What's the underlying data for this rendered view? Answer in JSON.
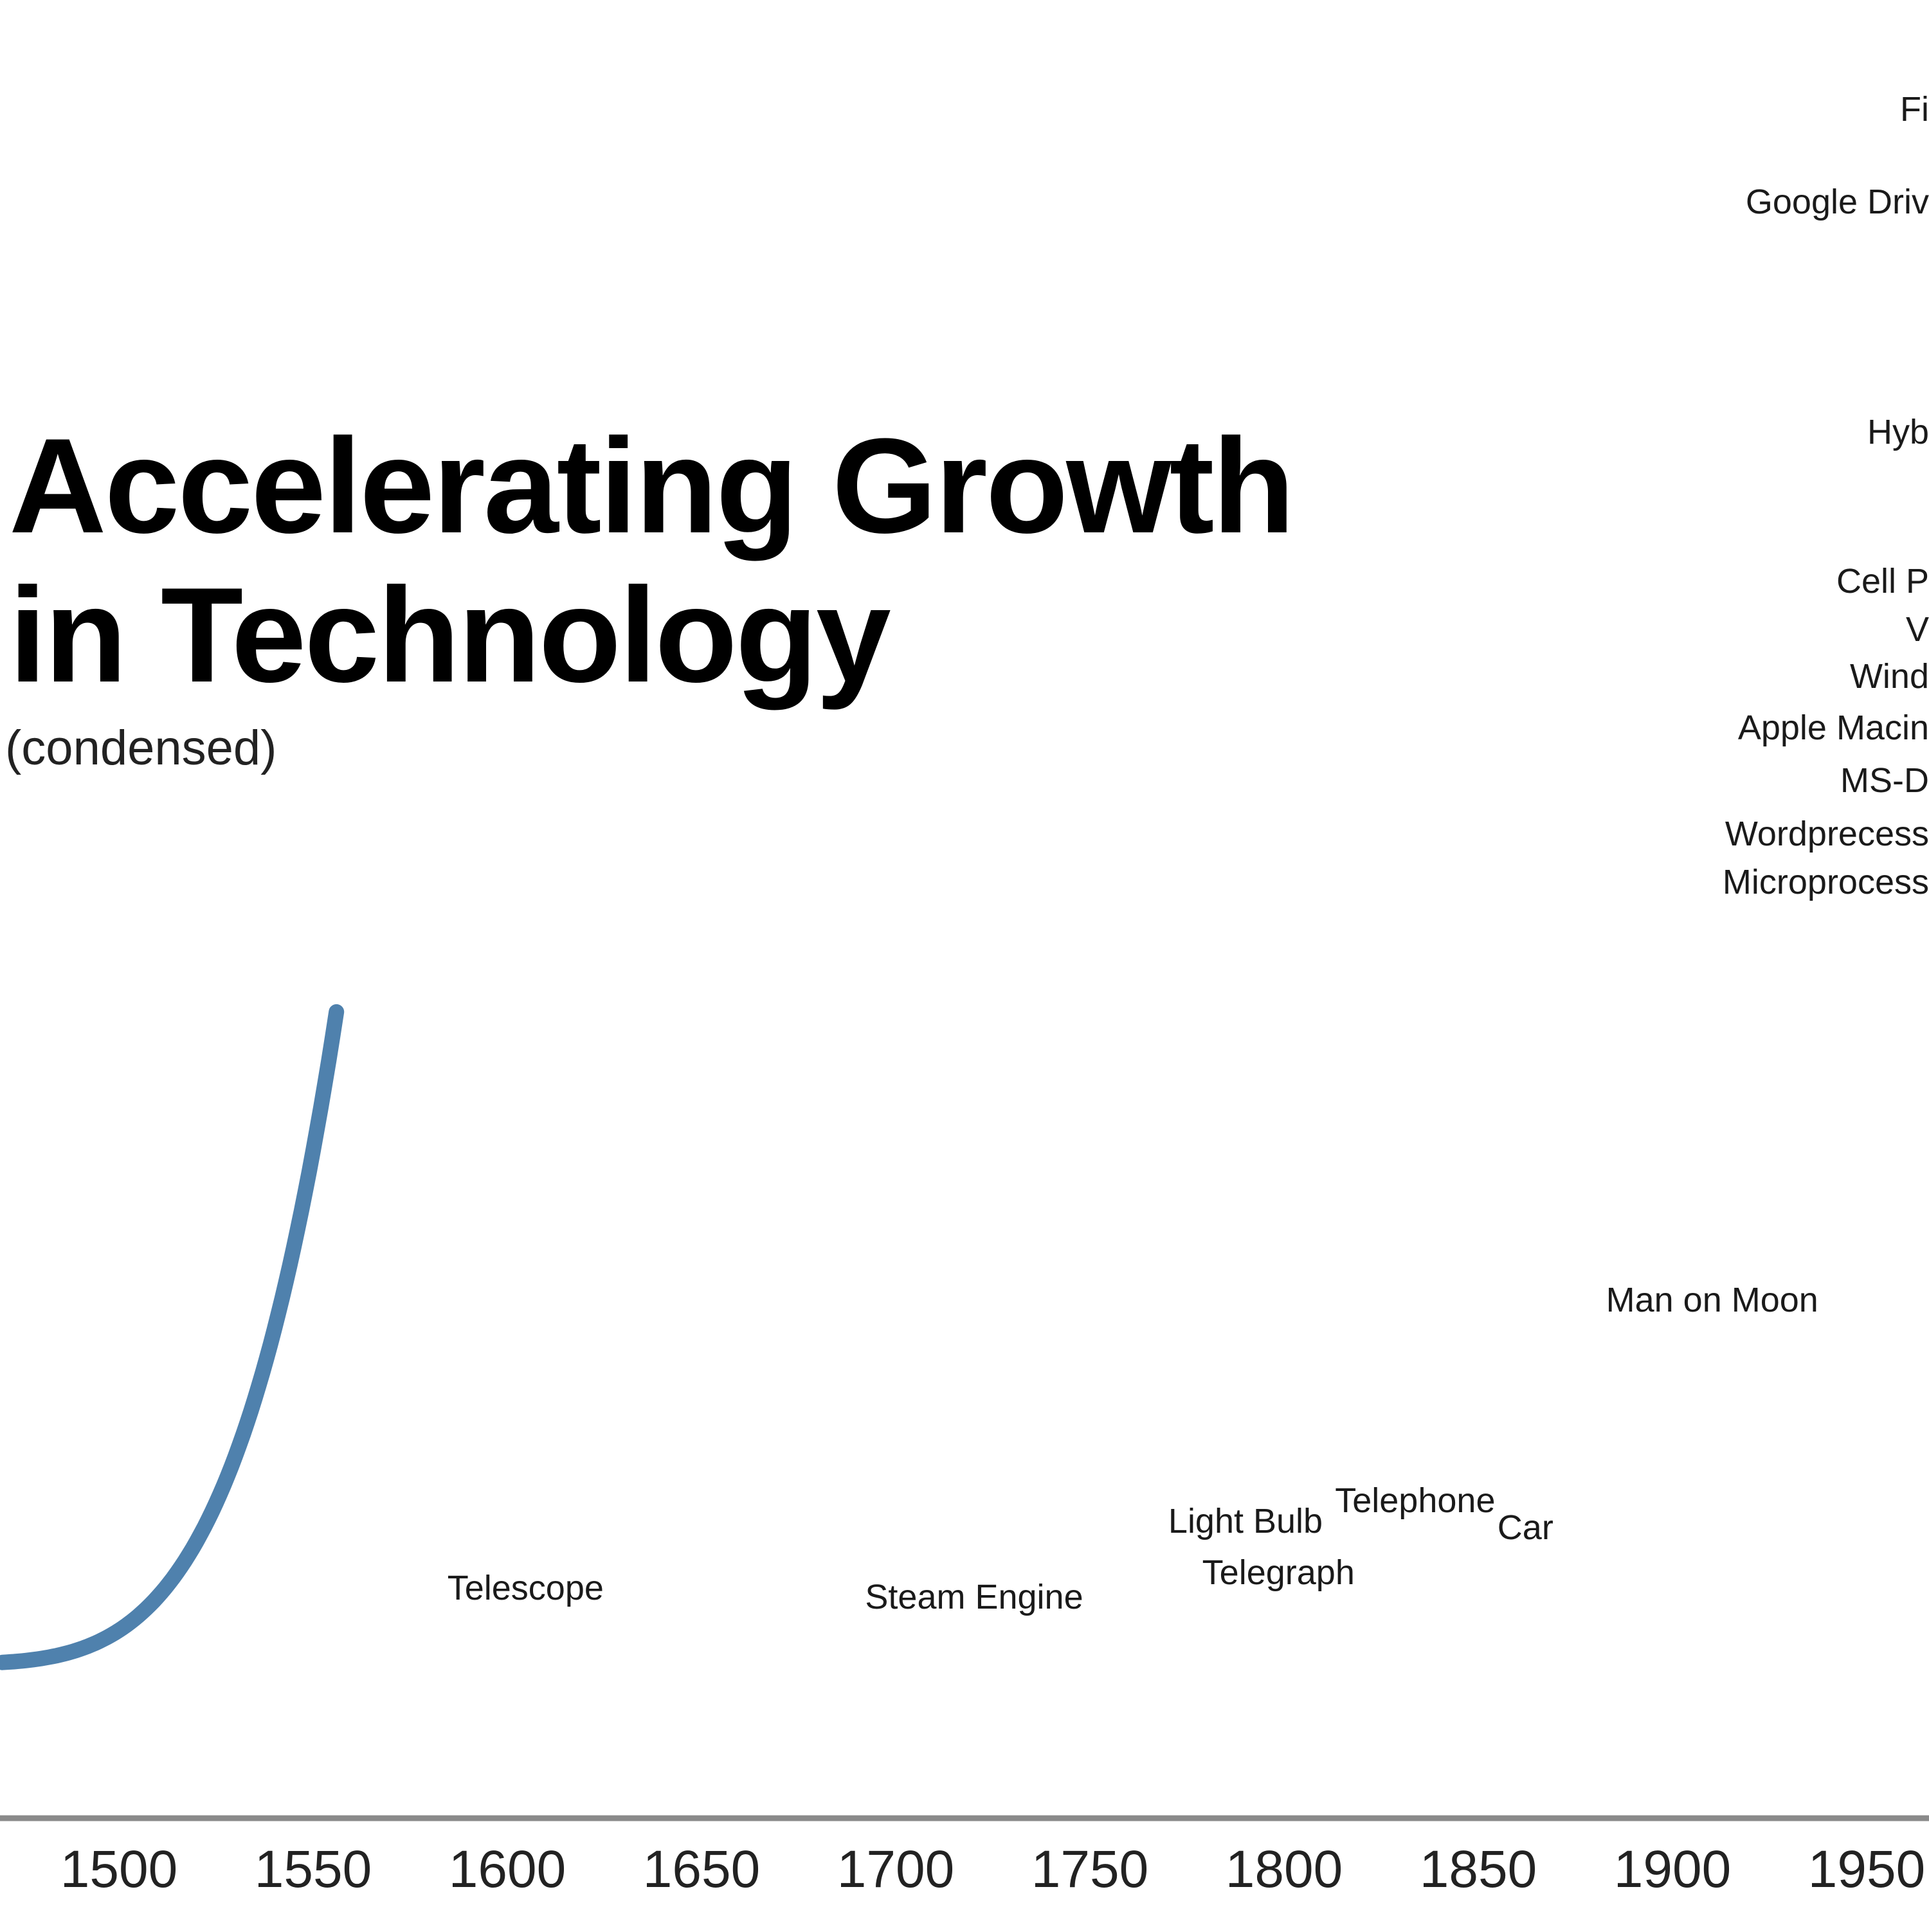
{
  "chart_data": {
    "type": "line",
    "title_lines": [
      "Accelerating Growth",
      "in Technology"
    ],
    "subtitle": "(condensed)",
    "xlabel": "",
    "ylabel": "",
    "xlim": [
      1470,
      1970
    ],
    "x_ticks": [
      "1500",
      "1550",
      "1600",
      "1650",
      "1700",
      "1750",
      "1800",
      "1850",
      "1900",
      "1950"
    ],
    "grid": false,
    "colors": {
      "curve": "#4f81ad",
      "points": "#f29533",
      "axis": "#8a8a8a"
    },
    "events": [
      {
        "label": "Telescope",
        "year": 1608
      },
      {
        "label": "Steam Engine",
        "year": 1750
      },
      {
        "label": "Telegraph",
        "year": 1782
      },
      {
        "label": "Light Bulb",
        "year": 1800
      },
      {
        "label": "Telephone",
        "year": 1847
      },
      {
        "label": "Car",
        "year": 1858
      },
      {
        "label": "Man on Moon",
        "year": 1943
      },
      {
        "label": "Microprocess",
        "year": null
      },
      {
        "label": "Wordprecess",
        "year": null
      },
      {
        "label": "MS-D",
        "year": null
      },
      {
        "label": "Apple Macin",
        "year": null
      },
      {
        "label": "Wind",
        "year": null
      },
      {
        "label": "V",
        "year": null
      },
      {
        "label": "Cell P",
        "year": null
      },
      {
        "label": "Hyb",
        "year": null
      },
      {
        "label": "Google Driv",
        "year": null
      },
      {
        "label": "Fi",
        "year": null
      }
    ]
  }
}
